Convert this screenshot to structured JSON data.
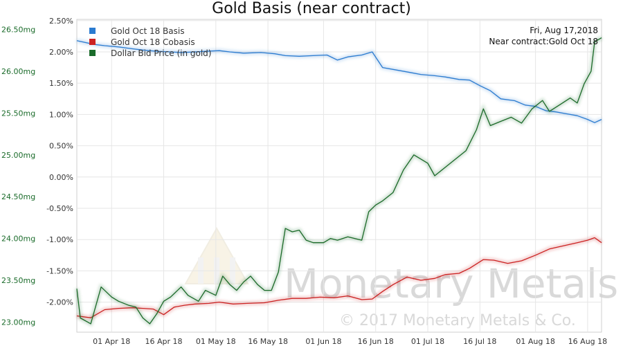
{
  "chart_data": {
    "type": "line",
    "title": "Gold Basis (near contract)",
    "annotation": {
      "date": "Fri, Aug 17,2018",
      "contract": "Near contract:Gold Oct 18"
    },
    "watermark": {
      "name": "Monetary Metals",
      "copyright": "© 2017 Monetary Metals & Co."
    },
    "left_axis": {
      "range": [
        22.88,
        26.62
      ],
      "ticks": [
        23.0,
        23.5,
        24.0,
        24.5,
        25.0,
        25.5,
        26.0,
        26.5
      ],
      "tick_labels": [
        "23.00mg",
        "23.50mg",
        "24.00mg",
        "24.50mg",
        "25.00mg",
        "25.50mg",
        "26.00mg",
        "26.50mg"
      ]
    },
    "right_axis": {
      "range": [
        -2.48,
        2.52
      ],
      "ticks": [
        -2.0,
        -1.5,
        -1.0,
        -0.5,
        0.0,
        0.5,
        1.0,
        1.5,
        2.0,
        2.5
      ],
      "tick_labels": [
        "-2.00%",
        "-1.50%",
        "-1.00%",
        "-0.50%",
        "0.00%",
        "0.50%",
        "1.00%",
        "1.50%",
        "2.00%",
        "2.50%"
      ]
    },
    "x_axis": {
      "range": [
        "2018-03-22",
        "2018-08-20"
      ],
      "ticks": [
        "2018-04-01",
        "2018-04-16",
        "2018-05-01",
        "2018-05-16",
        "2018-06-01",
        "2018-06-16",
        "2018-07-01",
        "2018-07-16",
        "2018-08-01",
        "2018-08-16"
      ],
      "tick_labels": [
        "01 Apr 18",
        "16 Apr 18",
        "01 May 18",
        "16 May 18",
        "01 Jun 18",
        "16 Jun 18",
        "01 Jul 18",
        "16 Jul 18",
        "01 Aug 18",
        "16 Aug 18"
      ]
    },
    "grid": true,
    "legend_placement": "top-left",
    "series": [
      {
        "name": "Gold Oct 18 Basis",
        "axis": "right",
        "color": "#2b7bd0",
        "x": [
          "2018-03-22",
          "2018-03-27",
          "2018-03-30",
          "2018-04-03",
          "2018-04-07",
          "2018-04-10",
          "2018-04-14",
          "2018-04-18",
          "2018-04-21",
          "2018-04-25",
          "2018-04-28",
          "2018-05-02",
          "2018-05-05",
          "2018-05-09",
          "2018-05-14",
          "2018-05-18",
          "2018-05-21",
          "2018-05-25",
          "2018-05-29",
          "2018-06-02",
          "2018-06-05",
          "2018-06-08",
          "2018-06-12",
          "2018-06-15",
          "2018-06-18",
          "2018-06-22",
          "2018-06-26",
          "2018-06-29",
          "2018-07-03",
          "2018-07-06",
          "2018-07-10",
          "2018-07-13",
          "2018-07-16",
          "2018-07-19",
          "2018-07-22",
          "2018-07-26",
          "2018-07-29",
          "2018-08-01",
          "2018-08-04",
          "2018-08-07",
          "2018-08-10",
          "2018-08-13",
          "2018-08-16",
          "2018-08-18",
          "2018-08-20"
        ],
        "values": [
          2.18,
          2.12,
          2.1,
          2.08,
          2.05,
          2.03,
          2.01,
          2.0,
          1.99,
          2.0,
          2.01,
          2.02,
          2.0,
          1.98,
          1.99,
          1.97,
          1.94,
          1.93,
          1.94,
          1.95,
          1.87,
          1.92,
          1.95,
          2.0,
          1.75,
          1.71,
          1.67,
          1.64,
          1.62,
          1.6,
          1.56,
          1.55,
          1.46,
          1.38,
          1.25,
          1.22,
          1.15,
          1.13,
          1.06,
          1.04,
          1.01,
          0.98,
          0.92,
          0.87,
          0.92
        ]
      },
      {
        "name": "Gold Oct 18 Cobasis",
        "axis": "right",
        "color": "#cc2222",
        "x": [
          "2018-03-22",
          "2018-03-26",
          "2018-03-30",
          "2018-04-03",
          "2018-04-07",
          "2018-04-10",
          "2018-04-13",
          "2018-04-16",
          "2018-04-19",
          "2018-04-22",
          "2018-04-25",
          "2018-04-29",
          "2018-05-02",
          "2018-05-06",
          "2018-05-10",
          "2018-05-15",
          "2018-05-19",
          "2018-05-23",
          "2018-05-27",
          "2018-05-31",
          "2018-06-04",
          "2018-06-08",
          "2018-06-12",
          "2018-06-15",
          "2018-06-18",
          "2018-06-21",
          "2018-06-25",
          "2018-06-29",
          "2018-07-03",
          "2018-07-06",
          "2018-07-10",
          "2018-07-13",
          "2018-07-17",
          "2018-07-20",
          "2018-07-24",
          "2018-07-28",
          "2018-08-01",
          "2018-08-05",
          "2018-08-09",
          "2018-08-13",
          "2018-08-16",
          "2018-08-18",
          "2018-08-20"
        ],
        "values": [
          -2.22,
          -2.25,
          -2.12,
          -2.1,
          -2.09,
          -2.1,
          -2.11,
          -2.2,
          -2.08,
          -2.05,
          -2.03,
          -2.02,
          -2.0,
          -2.03,
          -2.02,
          -2.01,
          -1.97,
          -1.94,
          -1.94,
          -1.92,
          -1.93,
          -1.9,
          -1.96,
          -1.95,
          -1.83,
          -1.72,
          -1.6,
          -1.65,
          -1.62,
          -1.56,
          -1.54,
          -1.46,
          -1.32,
          -1.33,
          -1.38,
          -1.34,
          -1.25,
          -1.15,
          -1.1,
          -1.05,
          -1.01,
          -0.97,
          -1.05
        ]
      },
      {
        "name": "Dollar Bid Price (in gold)",
        "axis": "left",
        "color": "#1a6b2a",
        "x": [
          "2018-03-22",
          "2018-03-23",
          "2018-03-26",
          "2018-03-29",
          "2018-04-01",
          "2018-04-03",
          "2018-04-06",
          "2018-04-08",
          "2018-04-10",
          "2018-04-12",
          "2018-04-14",
          "2018-04-16",
          "2018-04-18",
          "2018-04-21",
          "2018-04-23",
          "2018-04-26",
          "2018-04-28",
          "2018-05-01",
          "2018-05-03",
          "2018-05-05",
          "2018-05-07",
          "2018-05-09",
          "2018-05-11",
          "2018-05-13",
          "2018-05-15",
          "2018-05-17",
          "2018-05-19",
          "2018-05-21",
          "2018-05-23",
          "2018-05-25",
          "2018-05-27",
          "2018-05-29",
          "2018-06-01",
          "2018-06-03",
          "2018-06-05",
          "2018-06-08",
          "2018-06-12",
          "2018-06-14",
          "2018-06-16",
          "2018-06-18",
          "2018-06-21",
          "2018-06-24",
          "2018-06-27",
          "2018-07-01",
          "2018-07-03",
          "2018-07-06",
          "2018-07-09",
          "2018-07-12",
          "2018-07-15",
          "2018-07-17",
          "2018-07-19",
          "2018-07-22",
          "2018-07-25",
          "2018-07-28",
          "2018-07-31",
          "2018-08-03",
          "2018-08-05",
          "2018-08-08",
          "2018-08-11",
          "2018-08-13",
          "2018-08-15",
          "2018-08-17",
          "2018-08-18",
          "2018-08-20"
        ],
        "values": [
          23.4,
          23.05,
          22.98,
          23.42,
          23.3,
          23.25,
          23.2,
          23.18,
          23.05,
          22.98,
          23.1,
          23.25,
          23.3,
          23.42,
          23.32,
          23.25,
          23.38,
          23.32,
          23.55,
          23.45,
          23.38,
          23.48,
          23.55,
          23.45,
          23.38,
          23.38,
          23.6,
          24.12,
          24.08,
          24.1,
          23.98,
          23.95,
          23.95,
          24.0,
          23.98,
          24.02,
          23.98,
          24.32,
          24.4,
          24.45,
          24.55,
          24.82,
          25.0,
          24.9,
          24.75,
          24.85,
          24.95,
          25.05,
          25.3,
          25.55,
          25.35,
          25.4,
          25.45,
          25.38,
          25.55,
          25.65,
          25.52,
          25.6,
          25.68,
          25.62,
          25.85,
          26.0,
          26.35,
          26.4
        ]
      }
    ]
  }
}
